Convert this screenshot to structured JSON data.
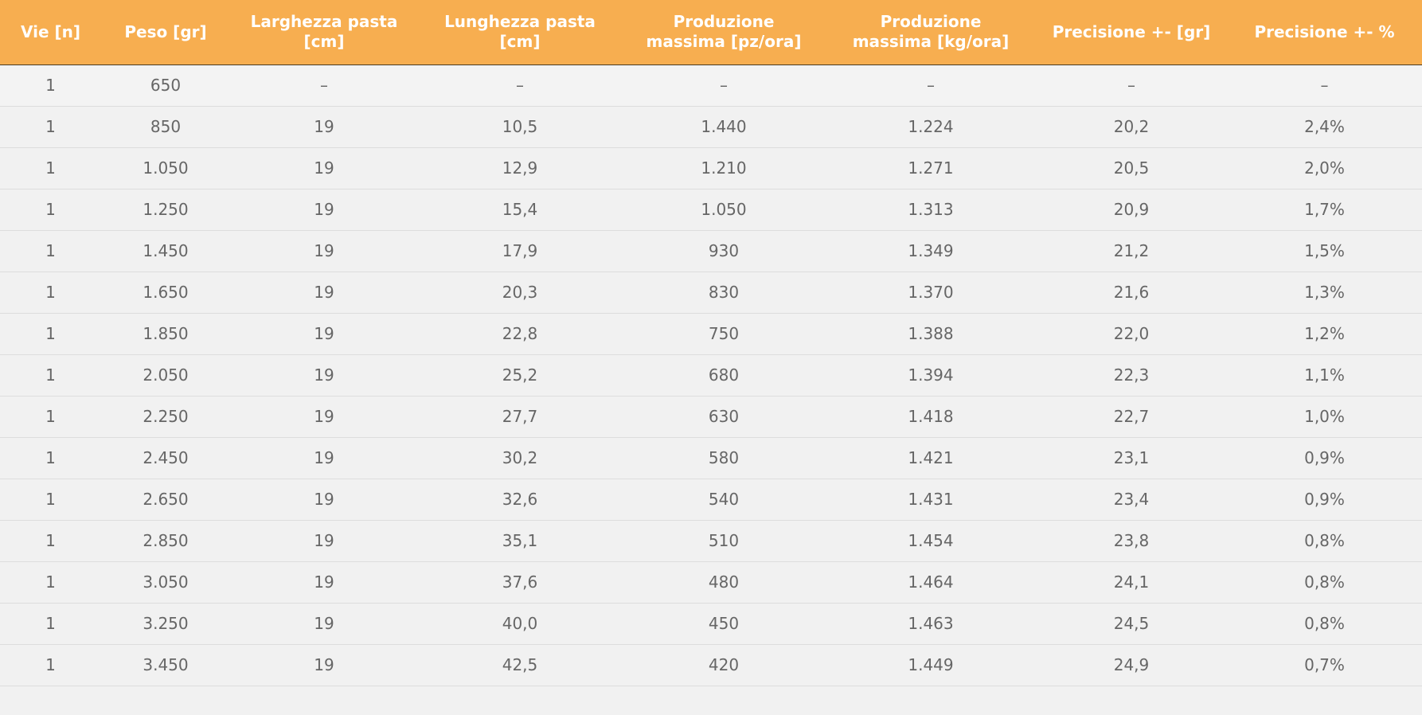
{
  "table": {
    "headers": [
      "Vie [n]",
      "Peso [gr]",
      "Larghezza pasta\n[cm]",
      "Lunghezza pasta\n[cm]",
      "Produzione\nmassima [pz/ora]",
      "Produzione\nmassima [kg/ora]",
      "Precisione +- [gr]",
      "Precisione +- %"
    ],
    "rows": [
      [
        "1",
        "650",
        "–",
        "–",
        "–",
        "–",
        "–",
        "–"
      ],
      [
        "1",
        "850",
        "19",
        "10,5",
        "1.440",
        "1.224",
        "20,2",
        "2,4%"
      ],
      [
        "1",
        "1.050",
        "19",
        "12,9",
        "1.210",
        "1.271",
        "20,5",
        "2,0%"
      ],
      [
        "1",
        "1.250",
        "19",
        "15,4",
        "1.050",
        "1.313",
        "20,9",
        "1,7%"
      ],
      [
        "1",
        "1.450",
        "19",
        "17,9",
        "930",
        "1.349",
        "21,2",
        "1,5%"
      ],
      [
        "1",
        "1.650",
        "19",
        "20,3",
        "830",
        "1.370",
        "21,6",
        "1,3%"
      ],
      [
        "1",
        "1.850",
        "19",
        "22,8",
        "750",
        "1.388",
        "22,0",
        "1,2%"
      ],
      [
        "1",
        "2.050",
        "19",
        "25,2",
        "680",
        "1.394",
        "22,3",
        "1,1%"
      ],
      [
        "1",
        "2.250",
        "19",
        "27,7",
        "630",
        "1.418",
        "22,7",
        "1,0%"
      ],
      [
        "1",
        "2.450",
        "19",
        "30,2",
        "580",
        "1.421",
        "23,1",
        "0,9%"
      ],
      [
        "1",
        "2.650",
        "19",
        "32,6",
        "540",
        "1.431",
        "23,4",
        "0,9%"
      ],
      [
        "1",
        "2.850",
        "19",
        "35,1",
        "510",
        "1.454",
        "23,8",
        "0,8%"
      ],
      [
        "1",
        "3.050",
        "19",
        "37,6",
        "480",
        "1.464",
        "24,1",
        "0,8%"
      ],
      [
        "1",
        "3.250",
        "19",
        "40,0",
        "450",
        "1.463",
        "24,5",
        "0,8%"
      ],
      [
        "1",
        "3.450",
        "19",
        "42,5",
        "420",
        "1.449",
        "24,9",
        "0,7%"
      ]
    ]
  },
  "colors": {
    "header_bg": "#f7ae50",
    "header_text": "#ffffff",
    "body_bg": "#f1f1f1",
    "cell_text": "#666666"
  }
}
